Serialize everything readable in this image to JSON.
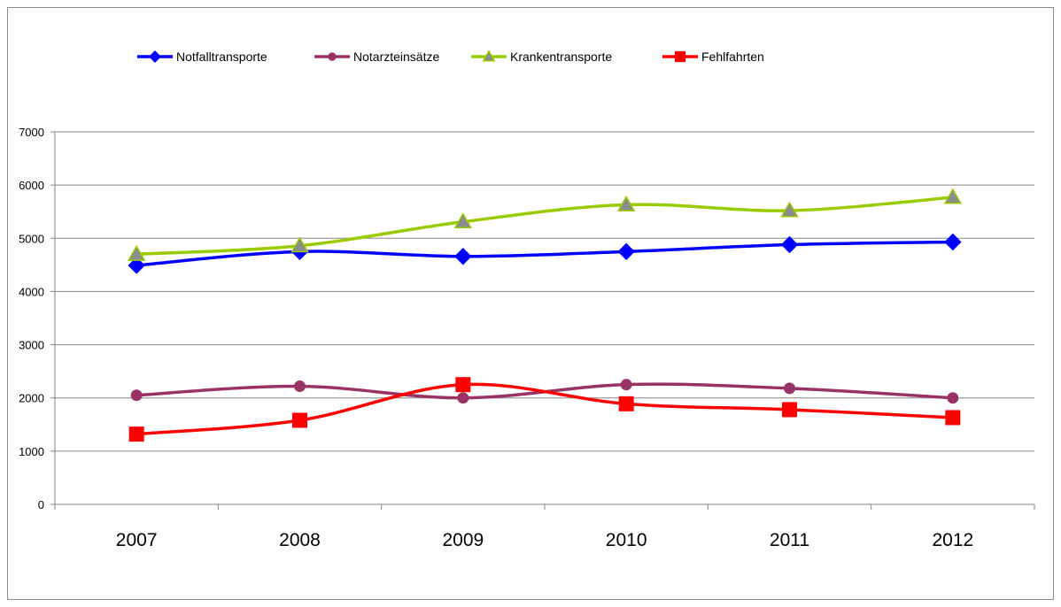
{
  "chart_data": {
    "type": "line",
    "title": "",
    "xlabel": "",
    "ylabel": "",
    "categories": [
      "2007",
      "2008",
      "2009",
      "2010",
      "2011",
      "2012"
    ],
    "ylim": [
      0,
      7000
    ],
    "yticks": [
      0,
      1000,
      2000,
      3000,
      4000,
      5000,
      6000,
      7000
    ],
    "grid": "horizontal",
    "legend_position": "top",
    "series": [
      {
        "name": "Notfalltransporte",
        "values": [
          4490,
          4750,
          4660,
          4750,
          4880,
          4930
        ],
        "color": "#0000ff",
        "marker": "diamond"
      },
      {
        "name": "Notarzteinsätze",
        "values": [
          2050,
          2220,
          2000,
          2250,
          2180,
          2000
        ],
        "color": "#993366",
        "marker": "circle"
      },
      {
        "name": "Krankentransporte",
        "values": [
          4700,
          4860,
          5310,
          5630,
          5520,
          5770
        ],
        "color": "#99cc00",
        "marker": "triangle"
      },
      {
        "name": "Fehlfahrten",
        "values": [
          1320,
          1580,
          2250,
          1890,
          1780,
          1630
        ],
        "color": "#ff0000",
        "marker": "square"
      }
    ]
  }
}
